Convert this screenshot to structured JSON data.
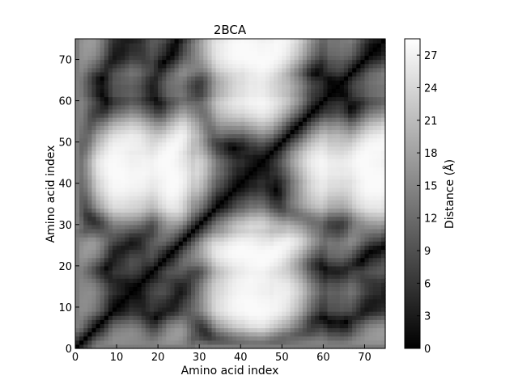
{
  "chart_data": {
    "type": "heatmap",
    "title": "2BCA",
    "xlabel": "Amino acid index",
    "ylabel": "Amino acid index",
    "xlim": [
      0,
      75
    ],
    "ylim": [
      0,
      75
    ],
    "x_ticks": [
      "0",
      "10",
      "20",
      "30",
      "40",
      "50",
      "60",
      "70"
    ],
    "y_ticks": [
      "0",
      "10",
      "20",
      "30",
      "40",
      "50",
      "60",
      "70"
    ],
    "grid_size": 75,
    "colormap": "gray",
    "colorbar": {
      "label": "Distance (Å)",
      "range": [
        0,
        28.5
      ],
      "ticks": [
        "0",
        "3",
        "6",
        "9",
        "12",
        "15",
        "18",
        "21",
        "24",
        "27"
      ],
      "low_color": "#000000",
      "high_color": "#ffffff"
    },
    "diagonal_value": 0,
    "neighbor_distance": 3.8
  }
}
